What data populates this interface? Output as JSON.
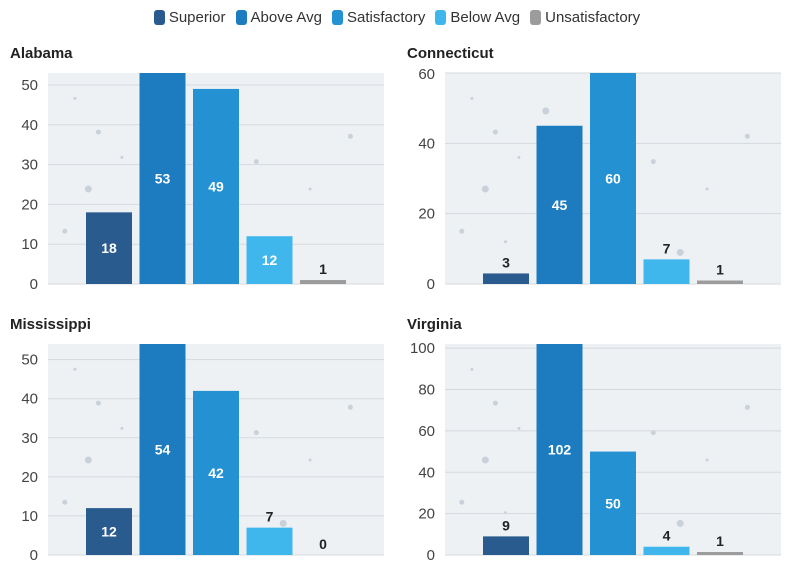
{
  "legend": [
    {
      "label": "Superior",
      "color": "#2a5b8f"
    },
    {
      "label": "Above Avg",
      "color": "#1d7cbf"
    },
    {
      "label": "Satisfactory",
      "color": "#2391d2"
    },
    {
      "label": "Below Avg",
      "color": "#3fb7ec"
    },
    {
      "label": "Unsatisfactory",
      "color": "#9c9c9c"
    }
  ],
  "chart_data": [
    {
      "type": "bar",
      "title": "Alabama",
      "categories": [
        "Superior",
        "Above Avg",
        "Satisfactory",
        "Below Avg",
        "Unsatisfactory"
      ],
      "values": [
        18,
        53,
        49,
        12,
        1
      ],
      "ylim": [
        0,
        53
      ],
      "yticks": [
        0,
        10,
        20,
        30,
        40,
        50
      ]
    },
    {
      "type": "bar",
      "title": "Connecticut",
      "categories": [
        "Superior",
        "Above Avg",
        "Satisfactory",
        "Below Avg",
        "Unsatisfactory"
      ],
      "values": [
        3,
        45,
        60,
        7,
        1
      ],
      "ylim": [
        0,
        60
      ],
      "yticks": [
        0,
        20,
        40,
        60
      ]
    },
    {
      "type": "bar",
      "title": "Mississippi",
      "categories": [
        "Superior",
        "Above Avg",
        "Satisfactory",
        "Below Avg",
        "Unsatisfactory"
      ],
      "values": [
        12,
        54,
        42,
        7,
        0
      ],
      "ylim": [
        0,
        54
      ],
      "yticks": [
        0,
        10,
        20,
        30,
        40,
        50
      ]
    },
    {
      "type": "bar",
      "title": "Virginia",
      "categories": [
        "Superior",
        "Above Avg",
        "Satisfactory",
        "Below Avg",
        "Unsatisfactory"
      ],
      "values": [
        9,
        102,
        50,
        4,
        1
      ],
      "ylim": [
        0,
        102
      ],
      "yticks": [
        0,
        20,
        40,
        60,
        80,
        100
      ]
    }
  ]
}
